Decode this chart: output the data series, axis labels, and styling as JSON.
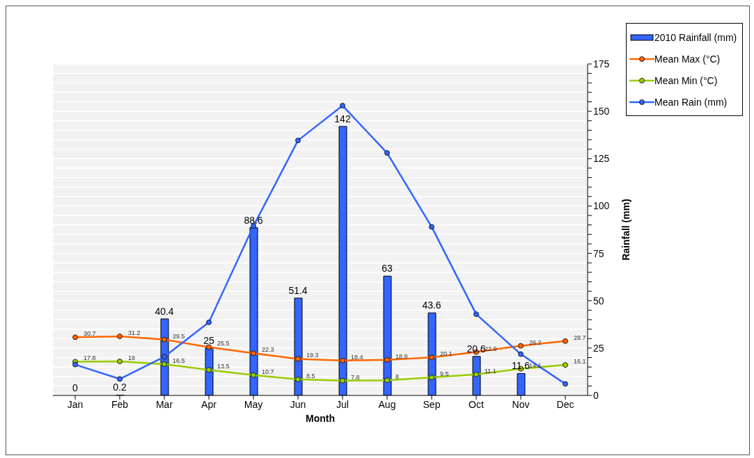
{
  "chart_data": {
    "type": "bar",
    "xlabel": "Month",
    "ylabel": "Rainfall (mm)",
    "categories": [
      "Jan",
      "Feb",
      "Mar",
      "Apr",
      "May",
      "Jun",
      "Jul",
      "Aug",
      "Sep",
      "Oct",
      "Nov",
      "Dec"
    ],
    "series": [
      {
        "name": "2010 Rainfall (mm)",
        "color": "#3366ff",
        "values": [
          0,
          0.2,
          40.4,
          25,
          88.6,
          51.4,
          142,
          63,
          43.6,
          20.6,
          11.6,
          null
        ],
        "value_labels": [
          "0",
          "0.2",
          "40.4",
          "25",
          "88.6",
          "51.4",
          "142",
          "63",
          "43.6",
          "20.6",
          "11.6",
          null
        ]
      },
      {
        "name": "Mean Max (°C)",
        "type": "line",
        "color": "#ff6600",
        "values": [
          30.7,
          31.2,
          29.5,
          25.5,
          22.3,
          19.3,
          18.4,
          18.8,
          20.1,
          22.9,
          26.2,
          28.7
        ],
        "value_labels": [
          "30.7",
          "31.2",
          "29.5",
          "25.5",
          "22.3",
          "19.3",
          "18.4",
          "18.8",
          "20.1",
          "22.9",
          "26.2",
          "28.7"
        ]
      },
      {
        "name": "Mean Min (°C)",
        "type": "line",
        "color": "#99cc00",
        "values": [
          17.8,
          18,
          16.5,
          13.5,
          10.7,
          8.5,
          7.8,
          8,
          9.5,
          11.1,
          14.1,
          16.1
        ],
        "value_labels": [
          "17.8",
          "18",
          "16.5",
          "13.5",
          "10.7",
          "8.5",
          "7.8",
          "8",
          "9.5",
          "11.1",
          "14.1",
          "16.1"
        ]
      },
      {
        "name": "Mean Rain (mm)",
        "type": "line",
        "color": "#3366ff",
        "values": [
          16.3,
          8.7,
          20.4,
          38.6,
          89.4,
          134.6,
          153,
          128,
          89,
          42.9,
          21.8,
          6.1
        ]
      }
    ],
    "ylim": [
      0,
      175
    ],
    "yticks": [
      0,
      {
        "value": 5,
        "label": null
      },
      {
        "value": 10,
        "label": null
      },
      {
        "value": 15,
        "label": null
      },
      {
        "value": 20,
        "label": null
      },
      25,
      {
        "value": 30,
        "label": null
      },
      {
        "value": 35,
        "label": null
      },
      {
        "value": 40,
        "label": null
      },
      {
        "value": 45,
        "label": null
      },
      50,
      {
        "value": 55,
        "label": null
      },
      {
        "value": 60,
        "label": null
      },
      {
        "value": 65,
        "label": null
      },
      {
        "value": 70,
        "label": null
      },
      75,
      {
        "value": 80,
        "label": null
      },
      {
        "value": 85,
        "label": null
      },
      {
        "value": 90,
        "label": null
      },
      {
        "value": 95,
        "label": null
      },
      100,
      {
        "value": 105,
        "label": null
      },
      {
        "value": 110,
        "label": null
      },
      {
        "value": 115,
        "label": null
      },
      {
        "value": 120,
        "label": null
      },
      125,
      {
        "value": 130,
        "label": null
      },
      {
        "value": 135,
        "label": null
      },
      {
        "value": 140,
        "label": null
      },
      {
        "value": 145,
        "label": null
      },
      150,
      {
        "value": 155,
        "label": null
      },
      {
        "value": 160,
        "label": null
      },
      {
        "value": 165,
        "label": null
      },
      {
        "value": 170,
        "label": null
      },
      175
    ],
    "grid": "y",
    "legend": "top right",
    "marker": "circle"
  }
}
